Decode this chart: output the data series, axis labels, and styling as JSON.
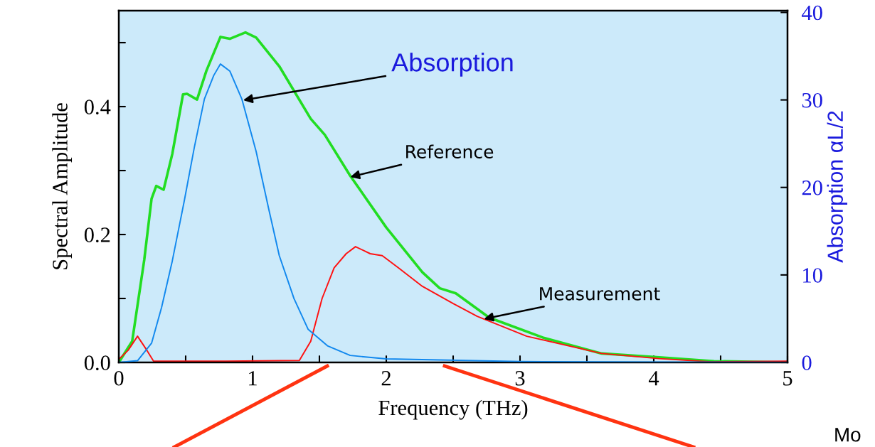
{
  "chart_data": {
    "type": "line",
    "xlabel": "Frequency (THz)",
    "ylabel": "Spectral Amplitude",
    "y2label": "Absorption αL/2",
    "xlim": [
      0,
      5
    ],
    "xticks": [
      0,
      {
        "value": 0.5,
        "label": null
      },
      1,
      {
        "value": 1.5,
        "label": null
      },
      2,
      {
        "value": 2.5,
        "label": null
      },
      3,
      {
        "value": 3.5,
        "label": null
      },
      4,
      {
        "value": 4.5,
        "label": null
      },
      5
    ],
    "ylim": [
      0,
      0.55
    ],
    "yticks": [
      {
        "value": 0,
        "label": "0.0"
      },
      {
        "value": 0.1,
        "label": null
      },
      0.2,
      {
        "value": 0.3,
        "label": null
      },
      0.4,
      {
        "value": 0.5,
        "label": null
      }
    ],
    "y2lim": [
      0,
      40.2
    ],
    "y2ticks": [
      0,
      10,
      20,
      30,
      40
    ],
    "grid": false,
    "legend": false,
    "series": [
      {
        "color": "#22dd22",
        "x": [
          0,
          0.1,
          0.19,
          0.245,
          0.28,
          0.335,
          0.4,
          0.48,
          0.51,
          0.585,
          0.655,
          0.76,
          0.83,
          0.947,
          1.027,
          1.2,
          1.435,
          1.54,
          1.73,
          2.0,
          2.27,
          2.4,
          2.52,
          2.77,
          3.17,
          3.61,
          4.04,
          4.45,
          5.0
        ],
        "values": [
          0,
          0.033,
          0.16,
          0.256,
          0.276,
          0.27,
          0.326,
          0.419,
          0.42,
          0.411,
          0.456,
          0.509,
          0.506,
          0.516,
          0.508,
          0.463,
          0.381,
          0.356,
          0.292,
          0.211,
          0.141,
          0.116,
          0.108,
          0.07,
          0.039,
          0.014,
          0.008,
          0.002,
          0
        ]
      },
      {
        "color": "#ff1111",
        "x": [
          0,
          0.07,
          0.14,
          0.21,
          0.26,
          0.8,
          1.35,
          1.435,
          1.52,
          1.61,
          1.7,
          1.77,
          1.88,
          1.97,
          2.09,
          2.27,
          2.5,
          2.68,
          3.05,
          3.61,
          4.04,
          4.43,
          5.0
        ],
        "values": [
          0.005,
          0.019,
          0.041,
          0.019,
          0.002,
          0.002,
          0.003,
          0.033,
          0.1,
          0.148,
          0.17,
          0.181,
          0.17,
          0.167,
          0.148,
          0.119,
          0.092,
          0.072,
          0.041,
          0.014,
          0.006,
          0.001,
          0.002
        ]
      },
      {
        "color": "#1188ee",
        "axis": "y2",
        "x": [
          0,
          0.14,
          0.245,
          0.32,
          0.4,
          0.49,
          0.565,
          0.64,
          0.71,
          0.76,
          0.83,
          0.92,
          1.027,
          1.12,
          1.2,
          1.31,
          1.415,
          1.56,
          1.73,
          2.0,
          3.0,
          5.0
        ],
        "values": [
          0,
          0.2,
          2.2,
          6.3,
          11.6,
          18.5,
          24.6,
          30.1,
          32.8,
          34.1,
          33.3,
          30.1,
          24.1,
          17.6,
          12.2,
          7.3,
          3.8,
          1.9,
          0.8,
          0.4,
          0.1,
          0
        ]
      }
    ],
    "annotations": [
      {
        "text": "Absorption",
        "x": 0.93,
        "y": 0.41
      },
      {
        "text": "Reference",
        "x": 1.73,
        "y": 0.29
      },
      {
        "text": "Measurement",
        "x": 2.73,
        "y": 0.068
      },
      "Mo"
    ]
  }
}
